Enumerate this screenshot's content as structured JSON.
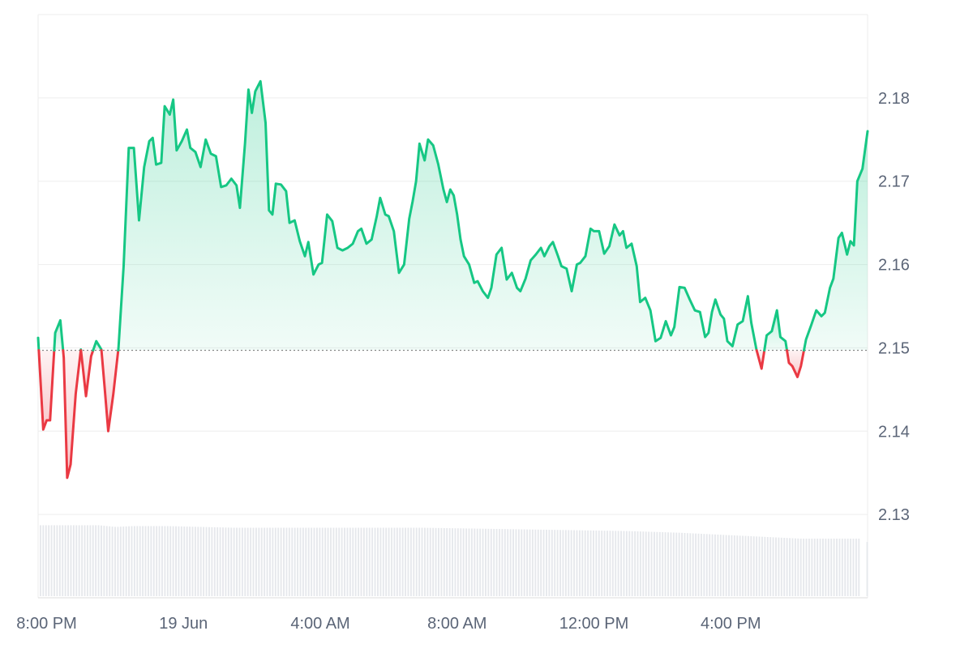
{
  "chart_data": {
    "type": "area",
    "title": "",
    "xlabel": "",
    "ylabel": "",
    "baseline": 2.1497,
    "ylim": [
      2.12,
      2.19
    ],
    "y_ticks": [
      2.13,
      2.14,
      2.15,
      2.16,
      2.17,
      2.18
    ],
    "y_tick_labels": [
      "2.13",
      "2.14",
      "2.15",
      "2.16",
      "2.17",
      "2.18"
    ],
    "x_ticks": [
      {
        "label": "8:00 PM",
        "hour": 2.0
      },
      {
        "label": "19 Jun",
        "hour": 6.0
      },
      {
        "label": "4:00 AM",
        "hour": 10.0
      },
      {
        "label": "8:00 AM",
        "hour": 14.0
      },
      {
        "label": "12:00 PM",
        "hour": 18.0
      },
      {
        "label": "4:00 PM",
        "hour": 22.0
      }
    ],
    "x_range_hours": [
      1.75,
      26.0
    ],
    "colors": {
      "up_line": "#16c784",
      "down_line": "#ea3943",
      "up_fill": "#16c784",
      "down_fill": "#ea3943",
      "grid": "#eeeeee",
      "baseline": "#888888",
      "volume": "#e6e8ec"
    },
    "series": [
      {
        "values": [
          [
            1.75,
            2.1512
          ],
          [
            1.9,
            2.1402
          ],
          [
            2.0,
            2.1413
          ],
          [
            2.1,
            2.1413
          ],
          [
            2.25,
            2.1518
          ],
          [
            2.4,
            2.1533
          ],
          [
            2.5,
            2.1488
          ],
          [
            2.6,
            2.1344
          ],
          [
            2.7,
            2.136
          ],
          [
            2.85,
            2.1445
          ],
          [
            3.0,
            2.1498
          ],
          [
            3.15,
            2.1442
          ],
          [
            3.3,
            2.149
          ],
          [
            3.45,
            2.1508
          ],
          [
            3.6,
            2.1498
          ],
          [
            3.7,
            2.145
          ],
          [
            3.8,
            2.14
          ],
          [
            3.95,
            2.1445
          ],
          [
            4.1,
            2.15
          ],
          [
            4.25,
            2.1598
          ],
          [
            4.4,
            2.174
          ],
          [
            4.55,
            2.174
          ],
          [
            4.7,
            2.1653
          ],
          [
            4.85,
            2.1717
          ],
          [
            5.0,
            2.1748
          ],
          [
            5.1,
            2.1752
          ],
          [
            5.2,
            2.172
          ],
          [
            5.35,
            2.1722
          ],
          [
            5.45,
            2.179
          ],
          [
            5.6,
            2.178
          ],
          [
            5.7,
            2.1798
          ],
          [
            5.8,
            2.1737
          ],
          [
            5.95,
            2.1748
          ],
          [
            6.1,
            2.1762
          ],
          [
            6.2,
            2.174
          ],
          [
            6.35,
            2.1735
          ],
          [
            6.5,
            2.1717
          ],
          [
            6.65,
            2.175
          ],
          [
            6.8,
            2.1733
          ],
          [
            6.95,
            2.173
          ],
          [
            7.1,
            2.1693
          ],
          [
            7.25,
            2.1695
          ],
          [
            7.4,
            2.1703
          ],
          [
            7.55,
            2.1695
          ],
          [
            7.65,
            2.1668
          ],
          [
            7.8,
            2.1746
          ],
          [
            7.9,
            2.181
          ],
          [
            8.0,
            2.1782
          ],
          [
            8.1,
            2.1808
          ],
          [
            8.25,
            2.182
          ],
          [
            8.4,
            2.177
          ],
          [
            8.5,
            2.1665
          ],
          [
            8.6,
            2.166
          ],
          [
            8.7,
            2.1697
          ],
          [
            8.85,
            2.1696
          ],
          [
            9.0,
            2.1688
          ],
          [
            9.1,
            2.165
          ],
          [
            9.25,
            2.1653
          ],
          [
            9.4,
            2.1628
          ],
          [
            9.55,
            2.161
          ],
          [
            9.65,
            2.1627
          ],
          [
            9.8,
            2.1588
          ],
          [
            9.95,
            2.16
          ],
          [
            10.05,
            2.1602
          ],
          [
            10.2,
            2.166
          ],
          [
            10.35,
            2.1652
          ],
          [
            10.5,
            2.162
          ],
          [
            10.65,
            2.1617
          ],
          [
            10.8,
            2.162
          ],
          [
            10.95,
            2.1625
          ],
          [
            11.1,
            2.164
          ],
          [
            11.2,
            2.1643
          ],
          [
            11.35,
            2.1625
          ],
          [
            11.5,
            2.163
          ],
          [
            11.65,
            2.1658
          ],
          [
            11.75,
            2.168
          ],
          [
            11.9,
            2.166
          ],
          [
            12.0,
            2.1658
          ],
          [
            12.15,
            2.164
          ],
          [
            12.3,
            2.159
          ],
          [
            12.45,
            2.16
          ],
          [
            12.6,
            2.1655
          ],
          [
            12.7,
            2.1676
          ],
          [
            12.8,
            2.17
          ],
          [
            12.9,
            2.1745
          ],
          [
            13.05,
            2.1725
          ],
          [
            13.15,
            2.175
          ],
          [
            13.3,
            2.1743
          ],
          [
            13.45,
            2.172
          ],
          [
            13.6,
            2.169
          ],
          [
            13.7,
            2.1675
          ],
          [
            13.8,
            2.169
          ],
          [
            13.9,
            2.1683
          ],
          [
            14.0,
            2.166
          ],
          [
            14.1,
            2.163
          ],
          [
            14.2,
            2.161
          ],
          [
            14.35,
            2.16
          ],
          [
            14.5,
            2.1578
          ],
          [
            14.6,
            2.158
          ],
          [
            14.75,
            2.1568
          ],
          [
            14.9,
            2.156
          ],
          [
            15.0,
            2.1572
          ],
          [
            15.15,
            2.1612
          ],
          [
            15.3,
            2.162
          ],
          [
            15.45,
            2.1582
          ],
          [
            15.6,
            2.159
          ],
          [
            15.75,
            2.1572
          ],
          [
            15.85,
            2.1568
          ],
          [
            16.0,
            2.1583
          ],
          [
            16.15,
            2.1605
          ],
          [
            16.3,
            2.1612
          ],
          [
            16.45,
            2.162
          ],
          [
            16.55,
            2.161
          ],
          [
            16.7,
            2.1622
          ],
          [
            16.8,
            2.1627
          ],
          [
            16.95,
            2.161
          ],
          [
            17.05,
            2.1598
          ],
          [
            17.2,
            2.1595
          ],
          [
            17.35,
            2.1568
          ],
          [
            17.5,
            2.16
          ],
          [
            17.6,
            2.1602
          ],
          [
            17.75,
            2.161
          ],
          [
            17.9,
            2.1643
          ],
          [
            18.0,
            2.164
          ],
          [
            18.15,
            2.164
          ],
          [
            18.3,
            2.1613
          ],
          [
            18.45,
            2.1622
          ],
          [
            18.6,
            2.1648
          ],
          [
            18.75,
            2.1635
          ],
          [
            18.85,
            2.164
          ],
          [
            18.95,
            2.162
          ],
          [
            19.1,
            2.1625
          ],
          [
            19.25,
            2.1598
          ],
          [
            19.35,
            2.1555
          ],
          [
            19.5,
            2.156
          ],
          [
            19.65,
            2.1545
          ],
          [
            19.8,
            2.1508
          ],
          [
            19.95,
            2.1512
          ],
          [
            20.1,
            2.1532
          ],
          [
            20.25,
            2.1515
          ],
          [
            20.35,
            2.1525
          ],
          [
            20.5,
            2.1573
          ],
          [
            20.65,
            2.1572
          ],
          [
            20.8,
            2.1558
          ],
          [
            20.95,
            2.1545
          ],
          [
            21.1,
            2.1543
          ],
          [
            21.25,
            2.1513
          ],
          [
            21.35,
            2.1518
          ],
          [
            21.45,
            2.1543
          ],
          [
            21.55,
            2.1558
          ],
          [
            21.7,
            2.154
          ],
          [
            21.8,
            2.1535
          ],
          [
            21.9,
            2.1508
          ],
          [
            22.05,
            2.1502
          ],
          [
            22.2,
            2.1528
          ],
          [
            22.35,
            2.1532
          ],
          [
            22.5,
            2.1562
          ],
          [
            22.6,
            2.153
          ],
          [
            22.75,
            2.1498
          ],
          [
            22.9,
            2.1475
          ],
          [
            23.05,
            2.1515
          ],
          [
            23.2,
            2.152
          ],
          [
            23.35,
            2.1545
          ],
          [
            23.45,
            2.1513
          ],
          [
            23.6,
            2.1508
          ],
          [
            23.7,
            2.1482
          ],
          [
            23.8,
            2.1478
          ],
          [
            23.95,
            2.1465
          ],
          [
            24.05,
            2.1478
          ],
          [
            24.2,
            2.151
          ],
          [
            24.35,
            2.1527
          ],
          [
            24.5,
            2.1545
          ],
          [
            24.65,
            2.1538
          ],
          [
            24.75,
            2.1542
          ],
          [
            24.9,
            2.1572
          ],
          [
            25.0,
            2.1583
          ],
          [
            25.15,
            2.1632
          ],
          [
            25.25,
            2.1638
          ],
          [
            25.4,
            2.1612
          ],
          [
            25.5,
            2.1628
          ],
          [
            25.6,
            2.1623
          ],
          [
            25.7,
            2.17
          ],
          [
            25.85,
            2.1715
          ],
          [
            26.0,
            2.176
          ]
        ]
      }
    ],
    "volume": {
      "ylim": [
        0,
        1
      ],
      "values": [
        [
          1.75,
          0.85
        ],
        [
          2.5,
          0.85
        ],
        [
          3.5,
          0.85
        ],
        [
          4.0,
          0.83
        ],
        [
          4.5,
          0.84
        ],
        [
          5.5,
          0.84
        ],
        [
          6.5,
          0.83
        ],
        [
          7.5,
          0.82
        ],
        [
          8.5,
          0.82
        ],
        [
          10.0,
          0.82
        ],
        [
          11.5,
          0.82
        ],
        [
          13.0,
          0.82
        ],
        [
          14.5,
          0.81
        ],
        [
          16.0,
          0.8
        ],
        [
          17.5,
          0.79
        ],
        [
          19.0,
          0.78
        ],
        [
          20.5,
          0.76
        ],
        [
          22.0,
          0.73
        ],
        [
          23.0,
          0.71
        ],
        [
          24.0,
          0.69
        ],
        [
          25.0,
          0.69
        ],
        [
          25.7,
          0.69
        ],
        [
          25.8,
          0.0
        ],
        [
          25.95,
          0.0
        ],
        [
          26.0,
          0.0
        ]
      ]
    }
  }
}
